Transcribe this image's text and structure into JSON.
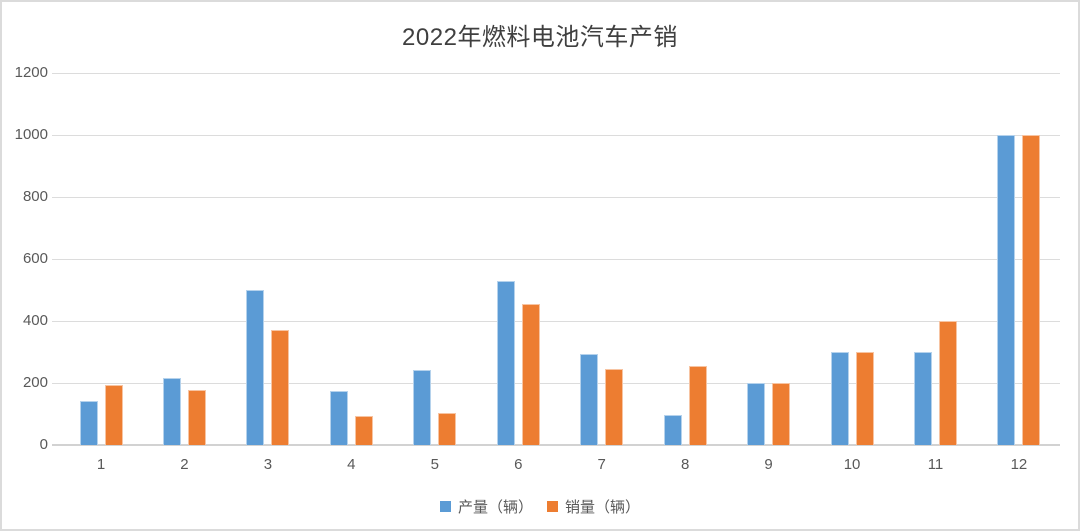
{
  "title": "2022年燃料电池汽车产销",
  "colors": {
    "production": "#5B9BD5",
    "sales": "#ED7D31",
    "gridline": "#DCDCDC",
    "axis_line": "#D2D2D2",
    "tick_text": "#595959",
    "title_text": "#3F3F3F",
    "canvas_border": "#DBDBDB"
  },
  "legend": {
    "items": [
      {
        "key": "production",
        "label": "产量（辆）"
      },
      {
        "key": "sales",
        "label": "销量（辆）"
      }
    ]
  },
  "chart_data": {
    "type": "bar",
    "title": "2022年燃料电池汽车产销",
    "categories": [
      "1",
      "2",
      "3",
      "4",
      "5",
      "6",
      "7",
      "8",
      "9",
      "10",
      "11",
      "12"
    ],
    "series": [
      {
        "name": "产量（辆）",
        "key": "production",
        "values": [
          142,
          215,
          500,
          175,
          243,
          527,
          292,
          97,
          200,
          300,
          300,
          1000
        ]
      },
      {
        "name": "销量（辆）",
        "key": "sales",
        "values": [
          192,
          178,
          370,
          95,
          103,
          455,
          245,
          255,
          200,
          300,
          400,
          1000
        ]
      }
    ],
    "xlabel": "",
    "ylabel": "",
    "ylim": [
      0,
      1200
    ],
    "ytick_step": 200,
    "yticks": [
      0,
      200,
      400,
      600,
      800,
      1000,
      1200
    ],
    "grid": true,
    "legend_position": "bottom"
  }
}
